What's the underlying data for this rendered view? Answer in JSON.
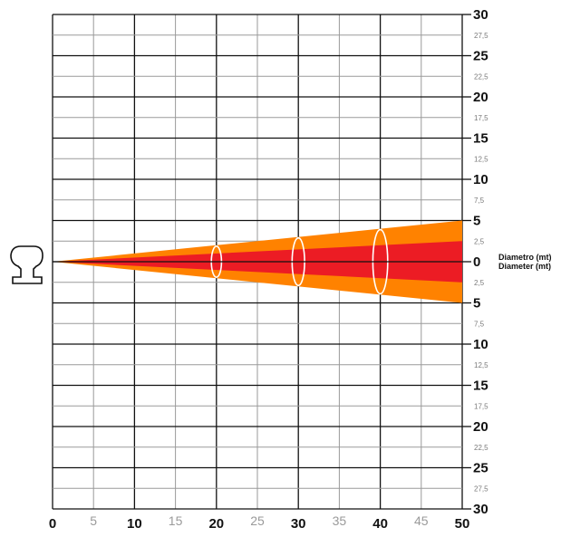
{
  "diagram": {
    "x_ticks_major": [
      "0",
      "10",
      "20",
      "30",
      "40",
      "50"
    ],
    "x_ticks_minor": [
      "5",
      "15",
      "25",
      "35",
      "45"
    ],
    "y_ticks": [
      "30",
      "27,5",
      "25",
      "22,5",
      "20",
      "17,5",
      "15",
      "12,5",
      "10",
      "7,5",
      "5",
      "2,5",
      "0",
      "2,5",
      "5",
      "7,5",
      "10",
      "12,5",
      "15",
      "17,5",
      "20",
      "22,5",
      "25",
      "27,5",
      "30"
    ],
    "y_label_line1": "Diametro (mt)",
    "y_label_line2": "Diameter (mt)",
    "x_range": [
      0,
      50
    ],
    "y_range": [
      -30,
      30
    ],
    "outer_beam_diameter_at_50": 10,
    "inner_beam_diameter_at_50": 5,
    "beam_ellipses_at_x": [
      20,
      30,
      40
    ],
    "colors": {
      "outer_beam": "#ff8200",
      "inner_beam": "#ec1c24",
      "grid_major": "#111111",
      "grid_minor": "#9a9a9a",
      "ellipse": "#ffffff"
    },
    "icon": "rail-profile-icon"
  }
}
